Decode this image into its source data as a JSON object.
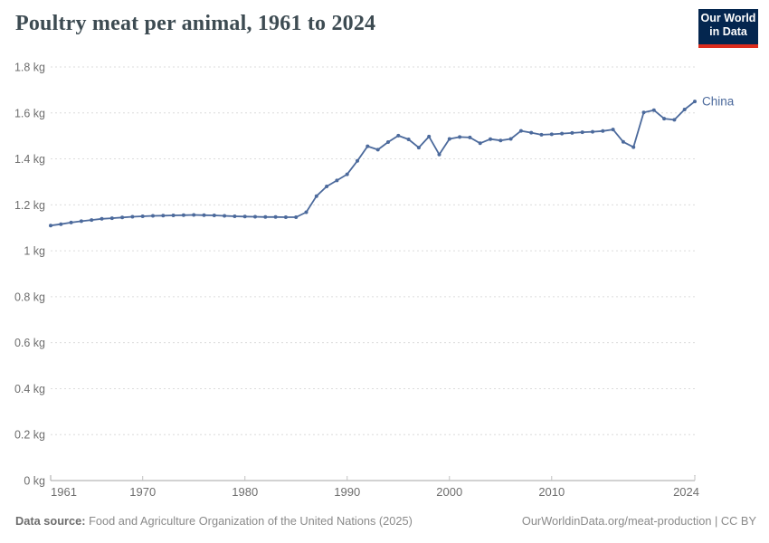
{
  "header": {
    "title": "Poultry meat per animal, 1961 to 2024",
    "logo": {
      "line1": "Our World",
      "line2": "in Data"
    }
  },
  "chart_data": {
    "type": "line",
    "title": "Poultry meat per animal, 1961 to 2024",
    "unit": "kg",
    "ylim": [
      0,
      1.8
    ],
    "ytick_values": [
      0,
      0.2,
      0.4,
      0.6,
      0.8,
      1,
      1.2,
      1.4,
      1.6,
      1.8
    ],
    "ytick_labels": [
      "0 kg",
      "0.2 kg",
      "0.4 kg",
      "0.6 kg",
      "0.8 kg",
      "1 kg",
      "1.2 kg",
      "1.4 kg",
      "1.6 kg",
      "1.8 kg"
    ],
    "xticks": [
      1961,
      1970,
      1980,
      1990,
      2000,
      2010,
      2024
    ],
    "grid": "horizontal-dashed",
    "legend_position": "end-of-line-label",
    "series": [
      {
        "name": "China",
        "color": "#4c6a9c",
        "x": [
          1961,
          1962,
          1963,
          1964,
          1965,
          1966,
          1967,
          1968,
          1969,
          1970,
          1971,
          1972,
          1973,
          1974,
          1975,
          1976,
          1977,
          1978,
          1979,
          1980,
          1981,
          1982,
          1983,
          1984,
          1985,
          1986,
          1987,
          1988,
          1989,
          1990,
          1991,
          1992,
          1993,
          1994,
          1995,
          1996,
          1997,
          1998,
          1999,
          2000,
          2001,
          2002,
          2003,
          2004,
          2005,
          2006,
          2007,
          2008,
          2009,
          2010,
          2011,
          2012,
          2013,
          2014,
          2015,
          2016,
          2017,
          2018,
          2019,
          2020,
          2021,
          2022,
          2023,
          2024
        ],
        "values": [
          1.11,
          1.116,
          1.123,
          1.129,
          1.134,
          1.139,
          1.142,
          1.145,
          1.148,
          1.15,
          1.152,
          1.153,
          1.154,
          1.155,
          1.156,
          1.155,
          1.154,
          1.152,
          1.15,
          1.149,
          1.148,
          1.147,
          1.147,
          1.146,
          1.146,
          1.168,
          1.238,
          1.28,
          1.306,
          1.333,
          1.391,
          1.455,
          1.44,
          1.473,
          1.501,
          1.485,
          1.449,
          1.497,
          1.419,
          1.487,
          1.495,
          1.493,
          1.468,
          1.486,
          1.48,
          1.487,
          1.522,
          1.514,
          1.505,
          1.507,
          1.51,
          1.513,
          1.516,
          1.518,
          1.521,
          1.528,
          1.474,
          1.451,
          1.602,
          1.612,
          1.575,
          1.57,
          1.615,
          1.65
        ]
      }
    ]
  },
  "footer": {
    "datasource_label": "Data source:",
    "datasource_text": " Food and Agriculture Organization of the United Nations (2025)",
    "credit": "OurWorldinData.org/meat-production | CC BY"
  },
  "colors": {
    "line": "#4c6a9c",
    "grid": "#dcdcdc",
    "axis": "#a6a6a6",
    "tick_label": "#6e6e6e",
    "title": "#3d4b52",
    "logo_bg": "#04264f",
    "logo_accent": "#dc2c1d"
  }
}
